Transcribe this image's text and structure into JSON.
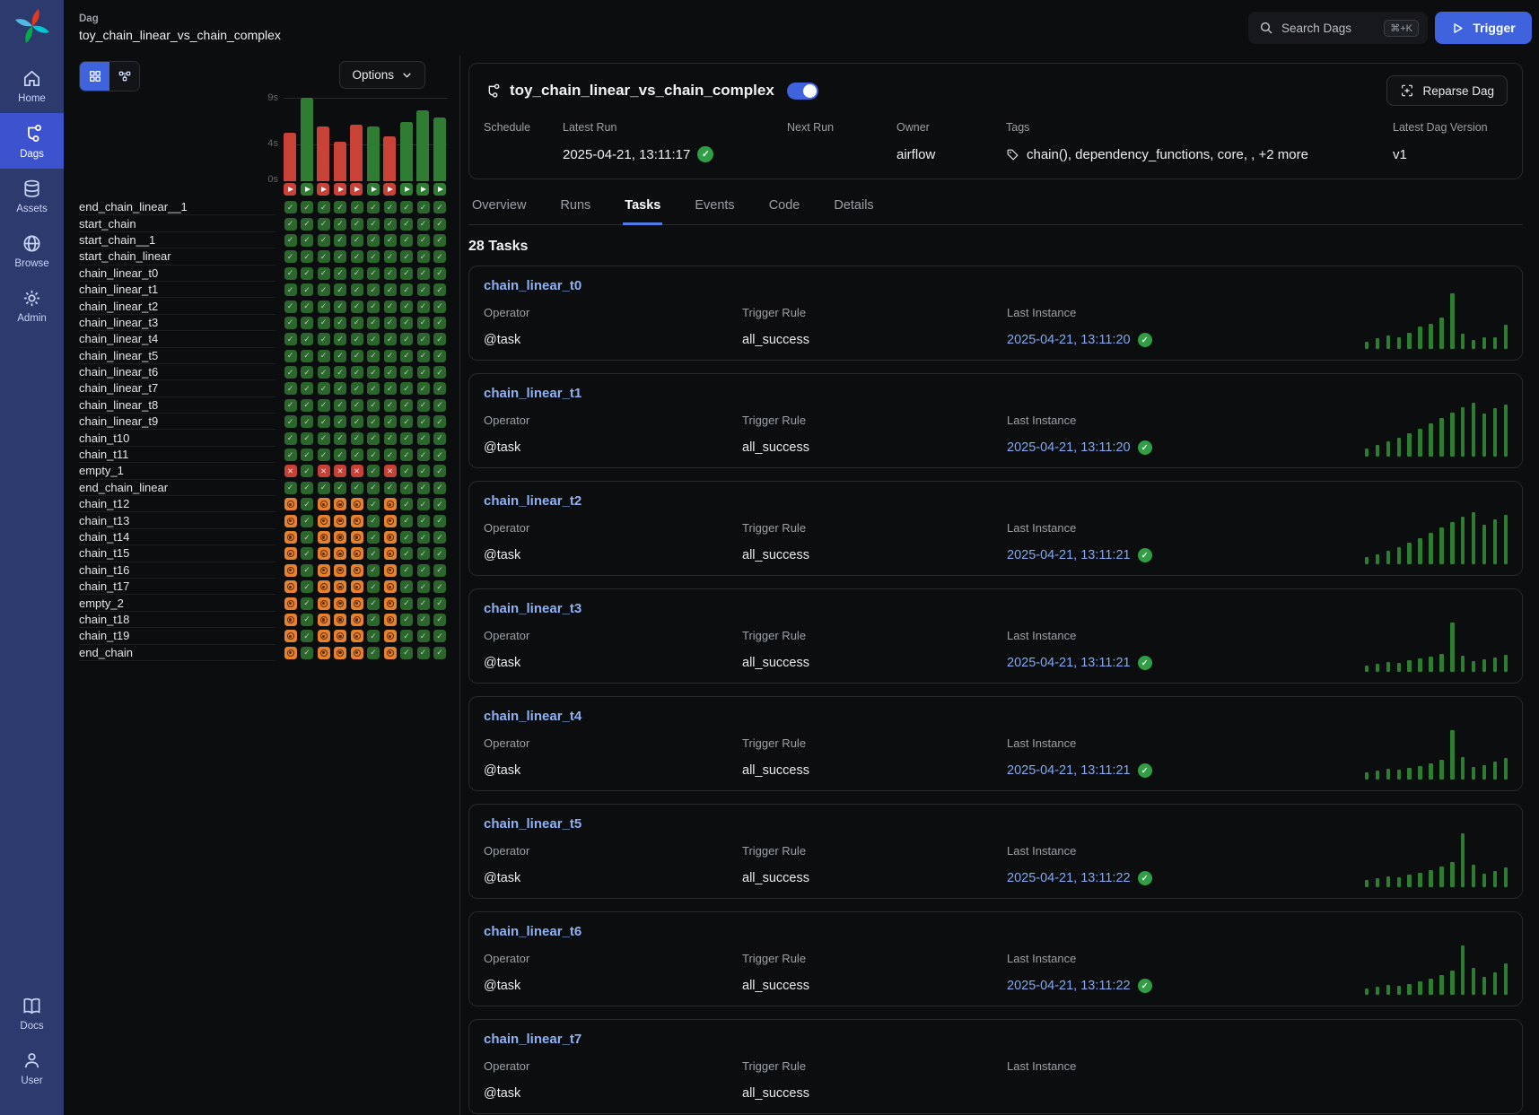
{
  "colors": {
    "accent": "#3e63dd",
    "success_green": "#2e7d32",
    "failed_red": "#c94237",
    "deferred_orange": "#e6822e",
    "link_blue": "#8fb1f2"
  },
  "sidebar": {
    "items": [
      {
        "label": "Home"
      },
      {
        "label": "Dags"
      },
      {
        "label": "Assets"
      },
      {
        "label": "Browse"
      },
      {
        "label": "Admin"
      }
    ],
    "footer_items": [
      {
        "label": "Docs"
      },
      {
        "label": "User"
      }
    ],
    "active_item": "Dags"
  },
  "header": {
    "eyebrow": "Dag",
    "dag_title": "toy_chain_linear_vs_chain_complex",
    "search": {
      "placeholder": "Search Dags",
      "shortcut": "⌘+K"
    },
    "trigger_label": "Trigger"
  },
  "grid_panel": {
    "options_label": "Options",
    "axis": {
      "top": "9s",
      "mid": "4s",
      "bottom": "0s"
    },
    "max_duration_s": 9,
    "runs": [
      {
        "state": "failed",
        "duration_s": 5.2
      },
      {
        "state": "success",
        "duration_s": 9.0
      },
      {
        "state": "failed",
        "duration_s": 5.9
      },
      {
        "state": "failed",
        "duration_s": 4.3
      },
      {
        "state": "failed",
        "duration_s": 6.1
      },
      {
        "state": "success",
        "duration_s": 5.9
      },
      {
        "state": "failed",
        "duration_s": 4.8
      },
      {
        "state": "success",
        "duration_s": 6.4
      },
      {
        "state": "success",
        "duration_s": 7.6
      },
      {
        "state": "success",
        "duration_s": 6.9
      }
    ],
    "patterns": {
      "all_success": [
        "success",
        "success",
        "success",
        "success",
        "success",
        "success",
        "success",
        "success",
        "success",
        "success"
      ],
      "failed_runs": [
        "failed",
        "success",
        "failed",
        "failed",
        "failed",
        "success",
        "failed",
        "success",
        "success",
        "success"
      ],
      "deferred_runs": [
        "deferred",
        "success",
        "deferred",
        "deferred",
        "deferred",
        "success",
        "deferred",
        "success",
        "success",
        "success"
      ]
    },
    "tasks": [
      {
        "name": "end_chain_linear__1",
        "pattern": "all_success"
      },
      {
        "name": "start_chain",
        "pattern": "all_success"
      },
      {
        "name": "start_chain__1",
        "pattern": "all_success"
      },
      {
        "name": "start_chain_linear",
        "pattern": "all_success"
      },
      {
        "name": "chain_linear_t0",
        "pattern": "all_success"
      },
      {
        "name": "chain_linear_t1",
        "pattern": "all_success"
      },
      {
        "name": "chain_linear_t2",
        "pattern": "all_success"
      },
      {
        "name": "chain_linear_t3",
        "pattern": "all_success"
      },
      {
        "name": "chain_linear_t4",
        "pattern": "all_success"
      },
      {
        "name": "chain_linear_t5",
        "pattern": "all_success"
      },
      {
        "name": "chain_linear_t6",
        "pattern": "all_success"
      },
      {
        "name": "chain_linear_t7",
        "pattern": "all_success"
      },
      {
        "name": "chain_linear_t8",
        "pattern": "all_success"
      },
      {
        "name": "chain_linear_t9",
        "pattern": "all_success"
      },
      {
        "name": "chain_t10",
        "pattern": "all_success"
      },
      {
        "name": "chain_t11",
        "pattern": "all_success"
      },
      {
        "name": "empty_1",
        "pattern": "failed_runs"
      },
      {
        "name": "end_chain_linear",
        "pattern": "all_success"
      },
      {
        "name": "chain_t12",
        "pattern": "deferred_runs"
      },
      {
        "name": "chain_t13",
        "pattern": "deferred_runs"
      },
      {
        "name": "chain_t14",
        "pattern": "deferred_runs"
      },
      {
        "name": "chain_t15",
        "pattern": "deferred_runs"
      },
      {
        "name": "chain_t16",
        "pattern": "deferred_runs"
      },
      {
        "name": "chain_t17",
        "pattern": "deferred_runs"
      },
      {
        "name": "empty_2",
        "pattern": "deferred_runs"
      },
      {
        "name": "chain_t18",
        "pattern": "deferred_runs"
      },
      {
        "name": "chain_t19",
        "pattern": "deferred_runs"
      },
      {
        "name": "end_chain",
        "pattern": "deferred_runs"
      }
    ]
  },
  "dag_panel": {
    "title": "toy_chain_linear_vs_chain_complex",
    "enabled": true,
    "reparse_label": "Reparse Dag",
    "info": {
      "schedule_label": "Schedule",
      "latest_run_label": "Latest Run",
      "latest_run_value": "2025-04-21, 13:11:17",
      "next_run_label": "Next Run",
      "owner_label": "Owner",
      "owner_value": "airflow",
      "tags_label": "Tags",
      "tags_value": "chain(), dependency_functions, core, , +2 more",
      "version_label": "Latest Dag Version",
      "version_value": "v1"
    },
    "tabs": [
      {
        "label": "Overview",
        "active": false
      },
      {
        "label": "Runs",
        "active": false
      },
      {
        "label": "Tasks",
        "active": true
      },
      {
        "label": "Events",
        "active": false
      },
      {
        "label": "Code",
        "active": false
      },
      {
        "label": "Details",
        "active": false
      }
    ],
    "tasks_count": "28 Tasks",
    "card_labels": {
      "operator": "Operator",
      "trigger_rule": "Trigger Rule",
      "last_instance": "Last Instance"
    },
    "cards": [
      {
        "name": "chain_linear_t0",
        "operator": "@task",
        "trigger_rule": "all_success",
        "last_instance": "2025-04-21, 13:11:20",
        "spark": [
          8,
          12,
          15,
          13,
          18,
          25,
          28,
          35,
          62,
          17,
          10,
          13,
          13,
          27
        ]
      },
      {
        "name": "chain_linear_t1",
        "operator": "@task",
        "trigger_rule": "all_success",
        "last_instance": "2025-04-21, 13:11:20",
        "spark": [
          9,
          13,
          17,
          21,
          26,
          31,
          37,
          43,
          49,
          55,
          60,
          48,
          54,
          58
        ]
      },
      {
        "name": "chain_linear_t2",
        "operator": "@task",
        "trigger_rule": "all_success",
        "last_instance": "2025-04-21, 13:11:21",
        "spark": [
          8,
          11,
          15,
          19,
          24,
          29,
          35,
          41,
          47,
          53,
          58,
          44,
          50,
          55
        ]
      },
      {
        "name": "chain_linear_t3",
        "operator": "@task",
        "trigger_rule": "all_success",
        "last_instance": "2025-04-21, 13:11:21",
        "spark": [
          7,
          9,
          11,
          10,
          13,
          15,
          17,
          20,
          55,
          18,
          12,
          14,
          16,
          19
        ]
      },
      {
        "name": "chain_linear_t4",
        "operator": "@task",
        "trigger_rule": "all_success",
        "last_instance": "2025-04-21, 13:11:21",
        "spark": [
          8,
          10,
          12,
          11,
          13,
          15,
          18,
          22,
          55,
          25,
          14,
          16,
          20,
          24
        ]
      },
      {
        "name": "chain_linear_t5",
        "operator": "@task",
        "trigger_rule": "all_success",
        "last_instance": "2025-04-21, 13:11:22",
        "spark": [
          8,
          10,
          12,
          11,
          14,
          16,
          19,
          23,
          28,
          60,
          25,
          15,
          18,
          22
        ]
      },
      {
        "name": "chain_linear_t6",
        "operator": "@task",
        "trigger_rule": "all_success",
        "last_instance": "2025-04-21, 13:11:22",
        "spark": [
          7,
          9,
          11,
          10,
          12,
          15,
          18,
          22,
          27,
          55,
          30,
          20,
          25,
          35
        ]
      },
      {
        "name": "chain_linear_t7",
        "operator": "@task",
        "trigger_rule": "all_success",
        "last_instance": "",
        "spark": []
      }
    ]
  }
}
